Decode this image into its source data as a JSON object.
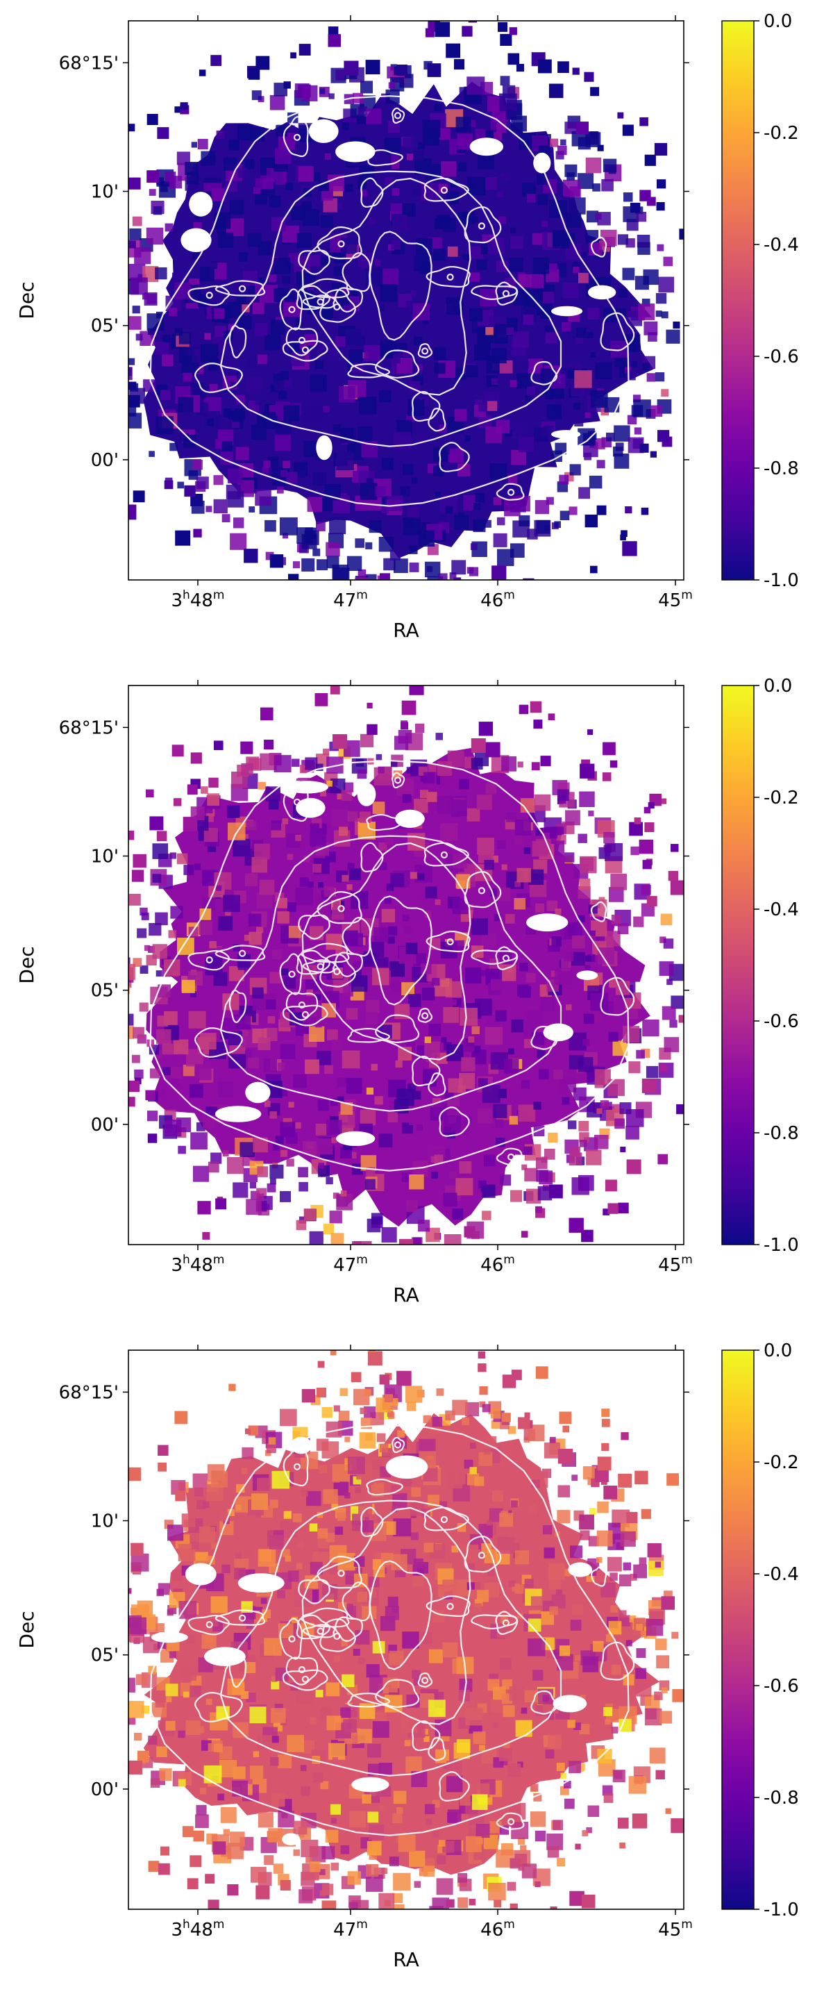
{
  "figure": {
    "xlabel": "RA",
    "ylabel": "Dec",
    "xticks": [
      {
        "ra": "3h48m",
        "main": "3",
        "sup": "h",
        "mid": "48",
        "sup2": "m"
      },
      {
        "ra": "47m",
        "main": "47",
        "sup": "m"
      },
      {
        "ra": "46m",
        "main": "46",
        "sup": "m"
      },
      {
        "ra": "45m",
        "main": "45",
        "sup": "m"
      }
    ],
    "yticks": [
      "68°15'",
      "10'",
      "05'",
      "00'"
    ],
    "colorbar": {
      "colormap": "plasma",
      "vmin": -1.0,
      "vmax": 0.0,
      "ticks": [
        "0.0",
        "-0.2",
        "-0.4",
        "-0.6",
        "-0.8",
        "-1.0"
      ]
    }
  },
  "chart_data": [
    {
      "type": "heatmap",
      "panel": 1,
      "colormap": "plasma",
      "clim": [
        -1.0,
        0.0
      ],
      "xlabel": "RA",
      "ylabel": "Dec",
      "x_ticks": [
        "3h48m",
        "47m",
        "46m",
        "45m"
      ],
      "y_ticks": [
        "68°15'",
        "10'",
        "05'",
        "00'"
      ],
      "colorbar_ticks": [
        0.0,
        -0.2,
        -0.4,
        -0.6,
        -0.8,
        -1.0
      ],
      "typical_value": -0.95,
      "base_color": "#1f0c8a",
      "contours_color": "#ffffff"
    },
    {
      "type": "heatmap",
      "panel": 2,
      "colormap": "plasma",
      "clim": [
        -1.0,
        0.0
      ],
      "xlabel": "RA",
      "ylabel": "Dec",
      "x_ticks": [
        "3h48m",
        "47m",
        "46m",
        "45m"
      ],
      "y_ticks": [
        "68°15'",
        "10'",
        "05'",
        "00'"
      ],
      "colorbar_ticks": [
        0.0,
        -0.2,
        -0.4,
        -0.6,
        -0.8,
        -1.0
      ],
      "typical_value": -0.7,
      "base_color": "#7a12a8",
      "contours_color": "#ffffff"
    },
    {
      "type": "heatmap",
      "panel": 3,
      "colormap": "plasma",
      "clim": [
        -1.0,
        0.0
      ],
      "xlabel": "RA",
      "ylabel": "Dec",
      "x_ticks": [
        "3h48m",
        "47m",
        "46m",
        "45m"
      ],
      "y_ticks": [
        "68°15'",
        "10'",
        "05'",
        "00'"
      ],
      "colorbar_ticks": [
        0.0,
        -0.2,
        -0.4,
        -0.6,
        -0.8,
        -1.0
      ],
      "typical_value": -0.45,
      "base_color": "#d8577b",
      "contours_color": "#ffffff"
    }
  ]
}
